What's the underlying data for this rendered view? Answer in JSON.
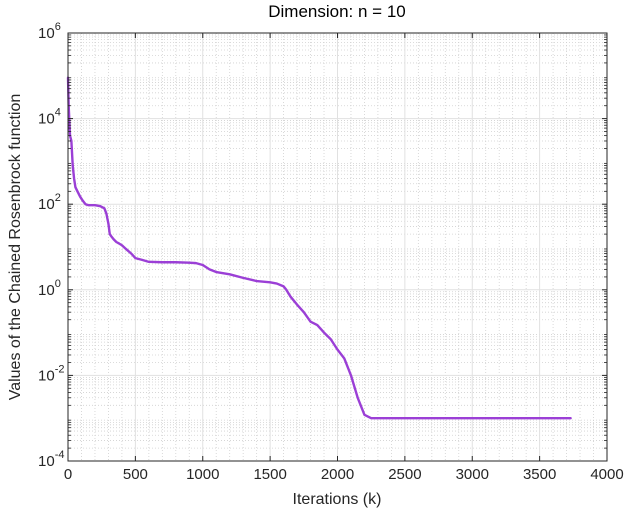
{
  "chart_data": {
    "type": "line",
    "title": "Dimension: n = 10",
    "xlabel": "Iterations (k)",
    "ylabel": "Values of the Chained Rosenbrock function",
    "xlim": [
      0,
      4000
    ],
    "ylim": [
      0.0001,
      1000000
    ],
    "y_scale": "log",
    "grid": true,
    "minor_grid": true,
    "x_ticks": [
      "0",
      "500",
      "1000",
      "1500",
      "2000",
      "2500",
      "3000",
      "3500",
      "4000"
    ],
    "y_ticks": [
      {
        "base": "10",
        "exp": "-4"
      },
      {
        "base": "10",
        "exp": "-2"
      },
      {
        "base": "10",
        "exp": "0"
      },
      {
        "base": "10",
        "exp": "2"
      },
      {
        "base": "10",
        "exp": "4"
      },
      {
        "base": "10",
        "exp": "6"
      }
    ],
    "line_color": "#9b3fd6",
    "series": [
      {
        "x": [
          0,
          5,
          15,
          25,
          35,
          45,
          55,
          70,
          90,
          110,
          130,
          150,
          200,
          240,
          270,
          285,
          300,
          310,
          320,
          340,
          360,
          380,
          400,
          430,
          470,
          500,
          550,
          600,
          700,
          800,
          900,
          950,
          1000,
          1050,
          1100,
          1200,
          1300,
          1400,
          1500,
          1550,
          1600,
          1620,
          1650,
          1700,
          1750,
          1800,
          1850,
          1900,
          1950,
          2000,
          2050,
          2100,
          2150,
          2200,
          2250,
          2280,
          2300,
          2400,
          2600,
          3000,
          3500,
          3730
        ],
        "y": [
          90000,
          20000,
          4000,
          3000,
          800,
          400,
          250,
          200,
          150,
          120,
          100,
          95,
          95,
          90,
          80,
          60,
          35,
          20,
          18,
          15,
          13,
          12,
          11,
          9,
          7,
          5.5,
          5,
          4.5,
          4.4,
          4.4,
          4.3,
          4.2,
          3.8,
          3.0,
          2.6,
          2.3,
          1.9,
          1.6,
          1.5,
          1.4,
          1.2,
          1.0,
          0.7,
          0.45,
          0.3,
          0.18,
          0.15,
          0.1,
          0.07,
          0.04,
          0.025,
          0.01,
          0.003,
          0.0012,
          0.001,
          0.001,
          0.001,
          0.001,
          0.001,
          0.001,
          0.001,
          0.001
        ]
      }
    ]
  }
}
